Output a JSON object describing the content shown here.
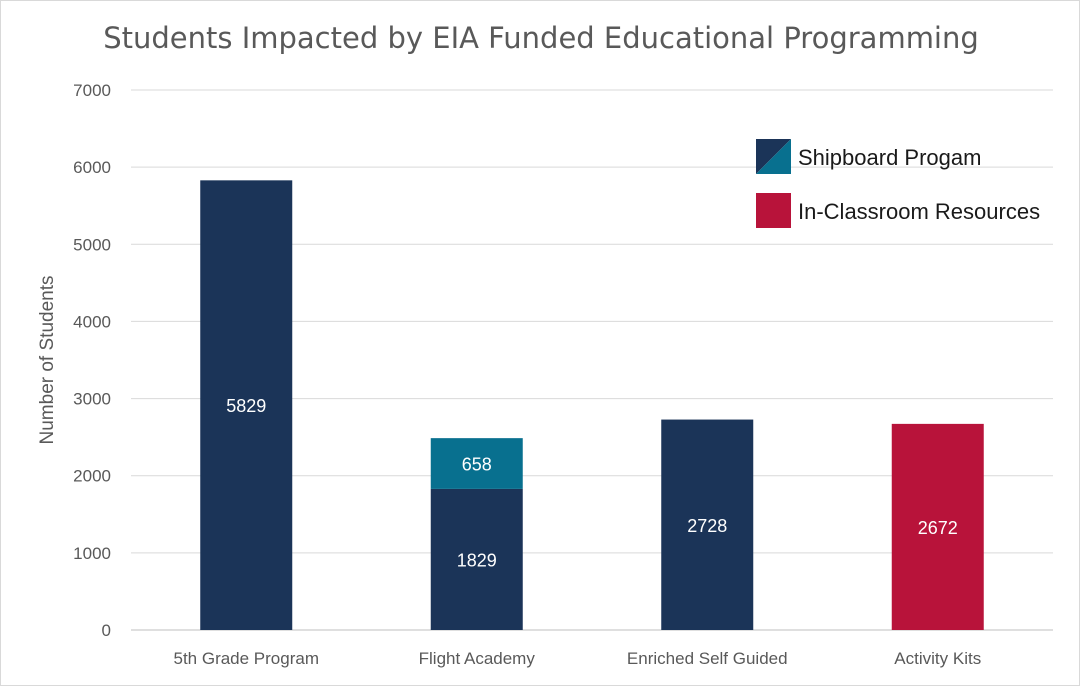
{
  "chart_data": {
    "type": "bar",
    "title": "Students Impacted by EIA Funded Educational Programming",
    "ylabel": "Number of Students",
    "xlabel": "",
    "ylim": [
      0,
      7000
    ],
    "yticks": [
      0,
      1000,
      2000,
      3000,
      4000,
      5000,
      6000,
      7000
    ],
    "grid": true,
    "legend_position": "top-right",
    "categories": [
      "5th Grade Program",
      "Flight Academy",
      "Enriched Self Guided",
      "Activity Kits"
    ],
    "bars": [
      {
        "category": "5th Grade Program",
        "segments": [
          {
            "value": 5829,
            "label": "5829",
            "color": "#1b3458"
          }
        ]
      },
      {
        "category": "Flight Academy",
        "segments": [
          {
            "value": 1829,
            "label": "1829",
            "color": "#1b3458"
          },
          {
            "value": 658,
            "label": "658",
            "color": "#08708f"
          }
        ]
      },
      {
        "category": "Enriched Self Guided",
        "segments": [
          {
            "value": 2728,
            "label": "2728",
            "color": "#1b3458"
          }
        ]
      },
      {
        "category": "Activity Kits",
        "segments": [
          {
            "value": 2672,
            "label": "2672",
            "color": "#b8133a"
          }
        ]
      }
    ],
    "legend": [
      {
        "name": "Shipboard Progam",
        "colors": [
          "#1b3458",
          "#08708f"
        ]
      },
      {
        "name": "In-Classroom Resources",
        "colors": [
          "#b8133a"
        ]
      }
    ]
  }
}
